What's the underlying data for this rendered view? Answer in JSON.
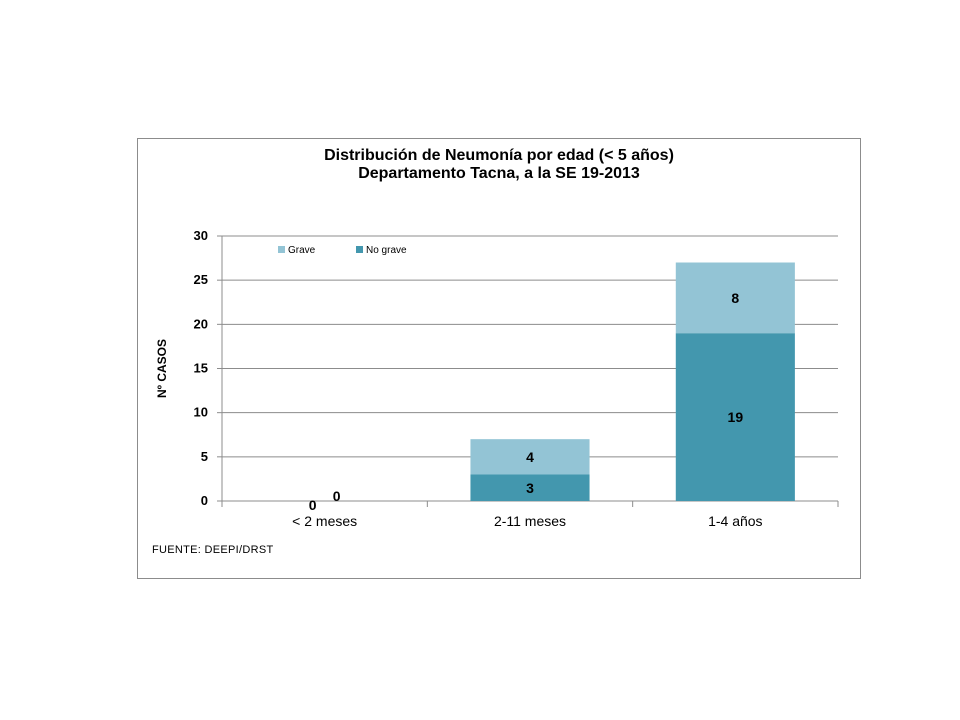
{
  "chart_data": {
    "type": "bar",
    "stacked": true,
    "title": [
      "Distribución  de Neumonía por edad (< 5 años)",
      "Departamento Tacna, a la SE  19-2013"
    ],
    "ylabel": "Nº CASOS",
    "xlabel": "",
    "ylim": [
      0,
      30
    ],
    "yticks": [
      0,
      5,
      10,
      15,
      20,
      25,
      30
    ],
    "grid": true,
    "legend_position": "top-left",
    "categories": [
      "< 2 meses",
      "2-11 meses",
      "1-4 años"
    ],
    "series": [
      {
        "name": "No grave",
        "values": [
          0,
          3,
          19
        ],
        "color": "#4397ae"
      },
      {
        "name": "Grave",
        "values": [
          0,
          4,
          8
        ],
        "color": "#93c4d5"
      }
    ],
    "legend_order": [
      "Grave",
      "No grave"
    ],
    "source": "FUENTE: DEEPI/DRST"
  }
}
